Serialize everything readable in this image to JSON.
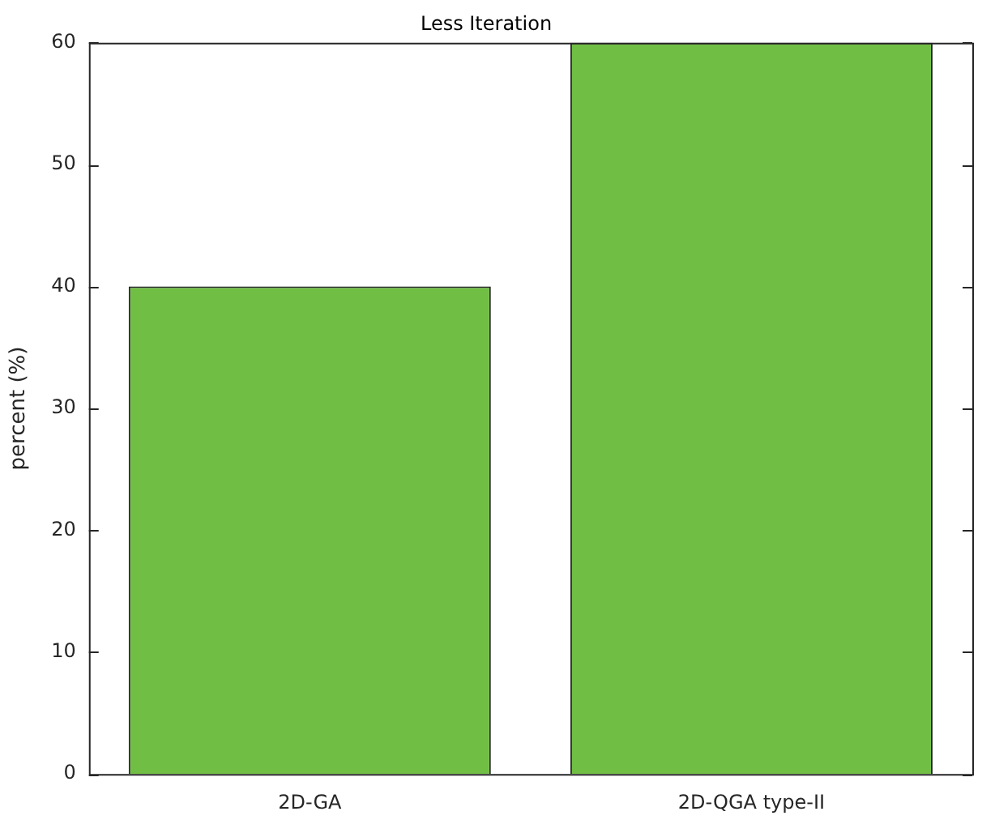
{
  "chart_data": {
    "type": "bar",
    "title": "Less Iteration",
    "ylabel": "percent (%)",
    "categories": [
      "2D-GA",
      "2D-QGA type-II"
    ],
    "values": [
      40,
      60
    ],
    "color": "#70bf44",
    "ylim": [
      0,
      60
    ],
    "yticks": [
      0,
      10,
      20,
      30,
      40,
      50,
      60
    ]
  }
}
